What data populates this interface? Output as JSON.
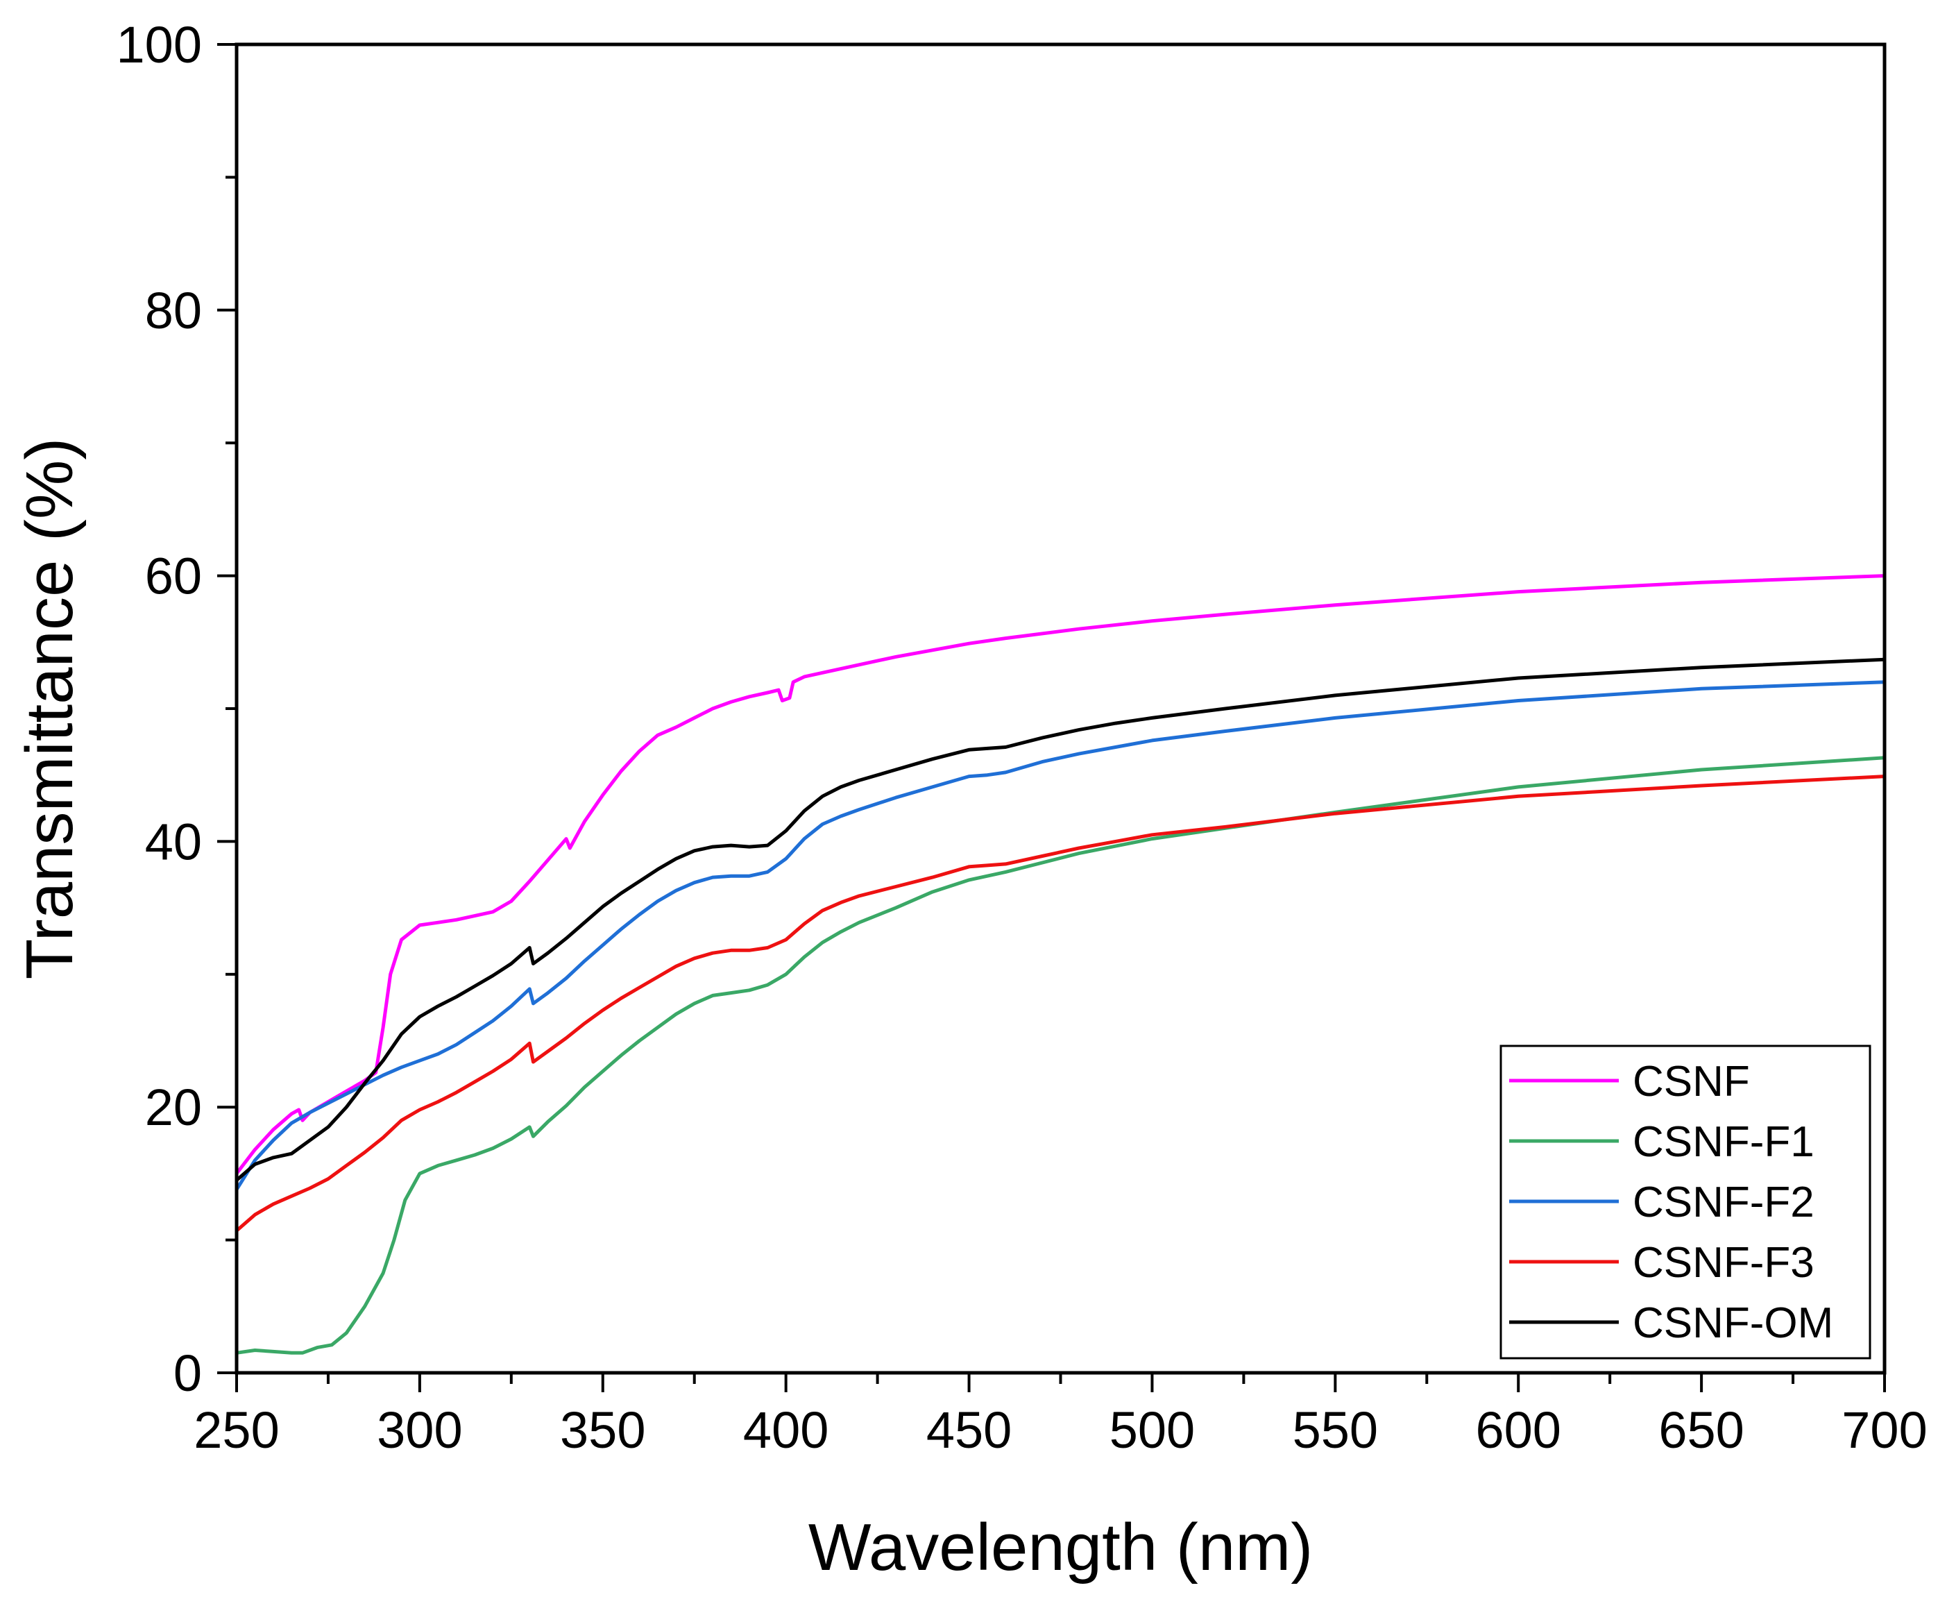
{
  "chart_data": {
    "type": "line",
    "title": "",
    "xlabel": "Wavelength (nm)",
    "ylabel": "Transmittance (%)",
    "xlim": [
      250,
      700
    ],
    "ylim": [
      0,
      100
    ],
    "xticks": [
      250,
      300,
      350,
      400,
      450,
      500,
      550,
      600,
      650,
      700
    ],
    "yticks": [
      0,
      20,
      40,
      60,
      80,
      100
    ],
    "xtick_labels": [
      "250",
      "300",
      "350",
      "400",
      "450",
      "500",
      "550",
      "600",
      "650",
      "700"
    ],
    "ytick_labels": [
      "0",
      "20",
      "40",
      "60",
      "80",
      "100"
    ],
    "grid": false,
    "legend_position": "bottom-right",
    "series": [
      {
        "name": "CSNF",
        "color": "#ff00ff",
        "points": [
          [
            250,
            15
          ],
          [
            255,
            16.8
          ],
          [
            260,
            18.3
          ],
          [
            265,
            19.5
          ],
          [
            267,
            19.8
          ],
          [
            268,
            19
          ],
          [
            270,
            19.6
          ],
          [
            275,
            20.4
          ],
          [
            280,
            21.2
          ],
          [
            285,
            22
          ],
          [
            288,
            22.6
          ],
          [
            290,
            26
          ],
          [
            292,
            30
          ],
          [
            295,
            32.6
          ],
          [
            300,
            33.7
          ],
          [
            305,
            33.9
          ],
          [
            310,
            34.1
          ],
          [
            315,
            34.4
          ],
          [
            320,
            34.7
          ],
          [
            325,
            35.5
          ],
          [
            330,
            37
          ],
          [
            335,
            38.6
          ],
          [
            340,
            40.2
          ],
          [
            341,
            39.5
          ],
          [
            345,
            41.5
          ],
          [
            350,
            43.5
          ],
          [
            355,
            45.3
          ],
          [
            360,
            46.8
          ],
          [
            365,
            48
          ],
          [
            370,
            48.6
          ],
          [
            375,
            49.3
          ],
          [
            380,
            50
          ],
          [
            385,
            50.5
          ],
          [
            390,
            50.9
          ],
          [
            395,
            51.2
          ],
          [
            398,
            51.4
          ],
          [
            399,
            50.6
          ],
          [
            401,
            50.8
          ],
          [
            402,
            52
          ],
          [
            405,
            52.4
          ],
          [
            410,
            52.7
          ],
          [
            420,
            53.3
          ],
          [
            430,
            53.9
          ],
          [
            440,
            54.4
          ],
          [
            450,
            54.9
          ],
          [
            460,
            55.3
          ],
          [
            480,
            56
          ],
          [
            500,
            56.6
          ],
          [
            520,
            57.1
          ],
          [
            550,
            57.8
          ],
          [
            600,
            58.8
          ],
          [
            650,
            59.5
          ],
          [
            700,
            60
          ]
        ]
      },
      {
        "name": "CSNF-F1",
        "color": "#3aa866",
        "points": [
          [
            250,
            1.5
          ],
          [
            255,
            1.7
          ],
          [
            260,
            1.6
          ],
          [
            265,
            1.5
          ],
          [
            268,
            1.5
          ],
          [
            272,
            1.9
          ],
          [
            276,
            2.1
          ],
          [
            280,
            3
          ],
          [
            285,
            5
          ],
          [
            290,
            7.5
          ],
          [
            293,
            10
          ],
          [
            296,
            13
          ],
          [
            300,
            15
          ],
          [
            305,
            15.6
          ],
          [
            310,
            16
          ],
          [
            315,
            16.4
          ],
          [
            320,
            16.9
          ],
          [
            325,
            17.6
          ],
          [
            330,
            18.5
          ],
          [
            331,
            17.8
          ],
          [
            335,
            18.9
          ],
          [
            340,
            20.1
          ],
          [
            345,
            21.5
          ],
          [
            350,
            22.7
          ],
          [
            355,
            23.9
          ],
          [
            360,
            25
          ],
          [
            365,
            26
          ],
          [
            370,
            27
          ],
          [
            375,
            27.8
          ],
          [
            380,
            28.4
          ],
          [
            385,
            28.6
          ],
          [
            390,
            28.8
          ],
          [
            395,
            29.2
          ],
          [
            400,
            30
          ],
          [
            405,
            31.3
          ],
          [
            410,
            32.4
          ],
          [
            415,
            33.2
          ],
          [
            420,
            33.9
          ],
          [
            430,
            35
          ],
          [
            440,
            36.2
          ],
          [
            450,
            37.1
          ],
          [
            460,
            37.7
          ],
          [
            480,
            39.1
          ],
          [
            500,
            40.2
          ],
          [
            520,
            41
          ],
          [
            550,
            42.2
          ],
          [
            600,
            44.1
          ],
          [
            650,
            45.4
          ],
          [
            700,
            46.3
          ]
        ]
      },
      {
        "name": "CSNF-F2",
        "color": "#1f6fd6",
        "points": [
          [
            250,
            13.8
          ],
          [
            255,
            16
          ],
          [
            260,
            17.5
          ],
          [
            265,
            18.8
          ],
          [
            270,
            19.6
          ],
          [
            275,
            20.3
          ],
          [
            280,
            21
          ],
          [
            285,
            21.7
          ],
          [
            290,
            22.4
          ],
          [
            295,
            23
          ],
          [
            300,
            23.5
          ],
          [
            305,
            24
          ],
          [
            310,
            24.7
          ],
          [
            315,
            25.6
          ],
          [
            320,
            26.5
          ],
          [
            325,
            27.6
          ],
          [
            330,
            28.9
          ],
          [
            331,
            27.8
          ],
          [
            335,
            28.6
          ],
          [
            340,
            29.7
          ],
          [
            345,
            31
          ],
          [
            350,
            32.2
          ],
          [
            355,
            33.4
          ],
          [
            360,
            34.5
          ],
          [
            365,
            35.5
          ],
          [
            370,
            36.3
          ],
          [
            375,
            36.9
          ],
          [
            380,
            37.3
          ],
          [
            385,
            37.4
          ],
          [
            390,
            37.4
          ],
          [
            395,
            37.7
          ],
          [
            400,
            38.7
          ],
          [
            405,
            40.2
          ],
          [
            410,
            41.3
          ],
          [
            415,
            41.9
          ],
          [
            420,
            42.4
          ],
          [
            430,
            43.3
          ],
          [
            440,
            44.1
          ],
          [
            450,
            44.9
          ],
          [
            455,
            45
          ],
          [
            460,
            45.2
          ],
          [
            470,
            46
          ],
          [
            480,
            46.6
          ],
          [
            490,
            47.1
          ],
          [
            500,
            47.6
          ],
          [
            520,
            48.3
          ],
          [
            550,
            49.3
          ],
          [
            600,
            50.6
          ],
          [
            650,
            51.5
          ],
          [
            700,
            52
          ]
        ]
      },
      {
        "name": "CSNF-F3",
        "color": "#ee1111",
        "points": [
          [
            250,
            10.7
          ],
          [
            255,
            11.9
          ],
          [
            260,
            12.7
          ],
          [
            265,
            13.3
          ],
          [
            270,
            13.9
          ],
          [
            275,
            14.6
          ],
          [
            280,
            15.6
          ],
          [
            285,
            16.6
          ],
          [
            290,
            17.7
          ],
          [
            295,
            19
          ],
          [
            300,
            19.8
          ],
          [
            305,
            20.4
          ],
          [
            310,
            21.1
          ],
          [
            315,
            21.9
          ],
          [
            320,
            22.7
          ],
          [
            325,
            23.6
          ],
          [
            330,
            24.8
          ],
          [
            331,
            23.4
          ],
          [
            335,
            24.2
          ],
          [
            340,
            25.2
          ],
          [
            345,
            26.3
          ],
          [
            350,
            27.3
          ],
          [
            355,
            28.2
          ],
          [
            360,
            29
          ],
          [
            365,
            29.8
          ],
          [
            370,
            30.6
          ],
          [
            375,
            31.2
          ],
          [
            380,
            31.6
          ],
          [
            385,
            31.8
          ],
          [
            390,
            31.8
          ],
          [
            395,
            32
          ],
          [
            400,
            32.6
          ],
          [
            405,
            33.8
          ],
          [
            410,
            34.8
          ],
          [
            415,
            35.4
          ],
          [
            420,
            35.9
          ],
          [
            430,
            36.6
          ],
          [
            440,
            37.3
          ],
          [
            450,
            38.1
          ],
          [
            455,
            38.2
          ],
          [
            460,
            38.3
          ],
          [
            470,
            38.9
          ],
          [
            480,
            39.5
          ],
          [
            490,
            40
          ],
          [
            500,
            40.5
          ],
          [
            520,
            41.1
          ],
          [
            550,
            42.1
          ],
          [
            600,
            43.4
          ],
          [
            650,
            44.2
          ],
          [
            700,
            44.9
          ]
        ]
      },
      {
        "name": "CSNF-OM",
        "color": "#000000",
        "points": [
          [
            250,
            14.5
          ],
          [
            255,
            15.7
          ],
          [
            260,
            16.2
          ],
          [
            265,
            16.5
          ],
          [
            270,
            17.5
          ],
          [
            275,
            18.5
          ],
          [
            280,
            20
          ],
          [
            285,
            21.8
          ],
          [
            290,
            23.5
          ],
          [
            295,
            25.5
          ],
          [
            300,
            26.8
          ],
          [
            305,
            27.6
          ],
          [
            310,
            28.3
          ],
          [
            315,
            29.1
          ],
          [
            320,
            29.9
          ],
          [
            325,
            30.8
          ],
          [
            330,
            32
          ],
          [
            331,
            30.8
          ],
          [
            335,
            31.6
          ],
          [
            340,
            32.7
          ],
          [
            345,
            33.9
          ],
          [
            350,
            35.1
          ],
          [
            355,
            36.1
          ],
          [
            360,
            37
          ],
          [
            365,
            37.9
          ],
          [
            370,
            38.7
          ],
          [
            375,
            39.3
          ],
          [
            380,
            39.6
          ],
          [
            385,
            39.7
          ],
          [
            390,
            39.6
          ],
          [
            395,
            39.7
          ],
          [
            400,
            40.8
          ],
          [
            405,
            42.3
          ],
          [
            410,
            43.4
          ],
          [
            415,
            44.1
          ],
          [
            420,
            44.6
          ],
          [
            430,
            45.4
          ],
          [
            440,
            46.2
          ],
          [
            450,
            46.9
          ],
          [
            455,
            47
          ],
          [
            460,
            47.1
          ],
          [
            470,
            47.8
          ],
          [
            480,
            48.4
          ],
          [
            490,
            48.9
          ],
          [
            500,
            49.3
          ],
          [
            520,
            50
          ],
          [
            550,
            51
          ],
          [
            600,
            52.3
          ],
          [
            650,
            53.1
          ],
          [
            700,
            53.7
          ]
        ]
      }
    ]
  }
}
